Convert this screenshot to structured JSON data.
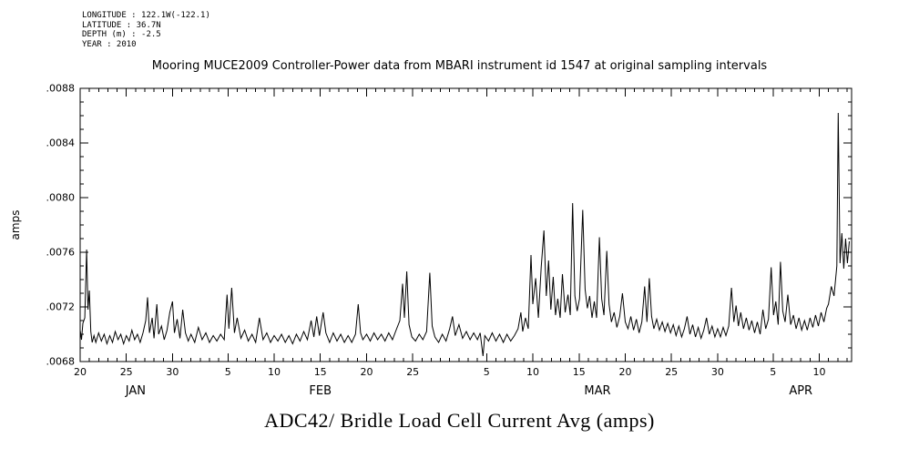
{
  "header": {
    "metadata_lines": [
      "LONGITUDE : 122.1W(-122.1)",
      "LATITUDE : 36.7N",
      "DEPTH (m) : -2.5",
      "YEAR : 2010"
    ],
    "title": "Mooring MUCE2009 Controller-Power data from MBARI instrument id 1547 at original sampling intervals"
  },
  "footer": {
    "title": "ADC42/ Bridle Load Cell Current Avg (amps)"
  },
  "colors": {
    "foreground": "#000000",
    "background": "#ffffff"
  },
  "chart_data": {
    "type": "line",
    "title": "Mooring MUCE2009 Controller-Power data from MBARI instrument id 1547 at original sampling intervals",
    "ylabel": "amps",
    "grid": false,
    "legend": "none",
    "x_axis": {
      "unit": "days since Jan 20, 2010",
      "lim": [
        0,
        83.5
      ],
      "minor_step": 1,
      "major_ticks": [
        {
          "day": 0,
          "label": "20"
        },
        {
          "day": 5,
          "label": "25"
        },
        {
          "day": 10,
          "label": "30"
        },
        {
          "day": 16,
          "label": "5"
        },
        {
          "day": 21,
          "label": "10"
        },
        {
          "day": 26,
          "label": "15"
        },
        {
          "day": 31,
          "label": "20"
        },
        {
          "day": 36,
          "label": "25"
        },
        {
          "day": 44,
          "label": "5"
        },
        {
          "day": 49,
          "label": "10"
        },
        {
          "day": 54,
          "label": "15"
        },
        {
          "day": 59,
          "label": "20"
        },
        {
          "day": 64,
          "label": "25"
        },
        {
          "day": 69,
          "label": "30"
        },
        {
          "day": 75,
          "label": "5"
        },
        {
          "day": 80,
          "label": "10"
        }
      ],
      "month_labels": [
        {
          "day": 6,
          "label": "JAN"
        },
        {
          "day": 26,
          "label": "FEB"
        },
        {
          "day": 56,
          "label": "MAR"
        },
        {
          "day": 78,
          "label": "APR"
        }
      ]
    },
    "y_axis": {
      "lim": [
        0.0068,
        0.0088
      ],
      "minor_step": 0.0001,
      "major_ticks": [
        {
          "value": 0.0068,
          "label": ".0068"
        },
        {
          "value": 0.0072,
          "label": ".0072"
        },
        {
          "value": 0.0076,
          "label": ".0076"
        },
        {
          "value": 0.008,
          "label": ".0080"
        },
        {
          "value": 0.0084,
          "label": ".0084"
        },
        {
          "value": 0.0088,
          "label": ".0088"
        }
      ]
    },
    "series": [
      {
        "name": "ADC42/ Bridle Load Cell Current Avg (amps)",
        "color": "#000000",
        "points": [
          [
            0.0,
            0.00703
          ],
          [
            0.15,
            0.00696
          ],
          [
            0.3,
            0.00708
          ],
          [
            0.5,
            0.00712
          ],
          [
            0.7,
            0.00762
          ],
          [
            0.85,
            0.00718
          ],
          [
            1.0,
            0.00732
          ],
          [
            1.15,
            0.00702
          ],
          [
            1.3,
            0.00694
          ],
          [
            1.5,
            0.00699
          ],
          [
            1.7,
            0.00694
          ],
          [
            2.0,
            0.00701
          ],
          [
            2.3,
            0.00695
          ],
          [
            2.6,
            0.007
          ],
          [
            2.9,
            0.00693
          ],
          [
            3.2,
            0.00699
          ],
          [
            3.5,
            0.00694
          ],
          [
            3.8,
            0.00702
          ],
          [
            4.1,
            0.00696
          ],
          [
            4.4,
            0.007
          ],
          [
            4.7,
            0.00693
          ],
          [
            5.0,
            0.00699
          ],
          [
            5.3,
            0.00695
          ],
          [
            5.6,
            0.00703
          ],
          [
            5.9,
            0.00696
          ],
          [
            6.2,
            0.007
          ],
          [
            6.5,
            0.00694
          ],
          [
            6.8,
            0.00701
          ],
          [
            7.1,
            0.0071
          ],
          [
            7.3,
            0.00727
          ],
          [
            7.5,
            0.00701
          ],
          [
            7.8,
            0.00712
          ],
          [
            8.0,
            0.00697
          ],
          [
            8.3,
            0.00722
          ],
          [
            8.5,
            0.007
          ],
          [
            8.8,
            0.00706
          ],
          [
            9.1,
            0.00696
          ],
          [
            9.4,
            0.00703
          ],
          [
            9.7,
            0.00716
          ],
          [
            10.0,
            0.00724
          ],
          [
            10.2,
            0.00701
          ],
          [
            10.5,
            0.00711
          ],
          [
            10.8,
            0.00697
          ],
          [
            11.1,
            0.00718
          ],
          [
            11.4,
            0.00701
          ],
          [
            11.7,
            0.00695
          ],
          [
            12.0,
            0.007
          ],
          [
            12.4,
            0.00694
          ],
          [
            12.8,
            0.00705
          ],
          [
            13.2,
            0.00696
          ],
          [
            13.6,
            0.00701
          ],
          [
            14.0,
            0.00694
          ],
          [
            14.4,
            0.00699
          ],
          [
            14.8,
            0.00695
          ],
          [
            15.2,
            0.007
          ],
          [
            15.6,
            0.00696
          ],
          [
            15.9,
            0.00729
          ],
          [
            16.1,
            0.00704
          ],
          [
            16.4,
            0.00734
          ],
          [
            16.7,
            0.00701
          ],
          [
            17.0,
            0.00712
          ],
          [
            17.4,
            0.00697
          ],
          [
            17.8,
            0.00703
          ],
          [
            18.2,
            0.00695
          ],
          [
            18.6,
            0.007
          ],
          [
            19.0,
            0.00694
          ],
          [
            19.4,
            0.00712
          ],
          [
            19.8,
            0.00696
          ],
          [
            20.2,
            0.00701
          ],
          [
            20.6,
            0.00694
          ],
          [
            21.0,
            0.00699
          ],
          [
            21.4,
            0.00695
          ],
          [
            21.8,
            0.007
          ],
          [
            22.2,
            0.00694
          ],
          [
            22.6,
            0.00699
          ],
          [
            23.0,
            0.00693
          ],
          [
            23.4,
            0.007
          ],
          [
            23.8,
            0.00695
          ],
          [
            24.2,
            0.00702
          ],
          [
            24.6,
            0.00696
          ],
          [
            25.0,
            0.0071
          ],
          [
            25.3,
            0.00698
          ],
          [
            25.6,
            0.00713
          ],
          [
            25.9,
            0.00699
          ],
          [
            26.3,
            0.00716
          ],
          [
            26.6,
            0.00701
          ],
          [
            27.0,
            0.00694
          ],
          [
            27.4,
            0.00701
          ],
          [
            27.8,
            0.00695
          ],
          [
            28.2,
            0.007
          ],
          [
            28.6,
            0.00694
          ],
          [
            29.0,
            0.00699
          ],
          [
            29.4,
            0.00694
          ],
          [
            29.8,
            0.007
          ],
          [
            30.1,
            0.00722
          ],
          [
            30.35,
            0.00701
          ],
          [
            30.6,
            0.00696
          ],
          [
            31.0,
            0.007
          ],
          [
            31.4,
            0.00695
          ],
          [
            31.8,
            0.00701
          ],
          [
            32.2,
            0.00696
          ],
          [
            32.6,
            0.007
          ],
          [
            33.0,
            0.00695
          ],
          [
            33.4,
            0.00701
          ],
          [
            33.8,
            0.00696
          ],
          [
            34.2,
            0.00703
          ],
          [
            34.6,
            0.0071
          ],
          [
            34.9,
            0.00737
          ],
          [
            35.1,
            0.00712
          ],
          [
            35.35,
            0.00746
          ],
          [
            35.6,
            0.00707
          ],
          [
            35.9,
            0.00698
          ],
          [
            36.3,
            0.00695
          ],
          [
            36.7,
            0.007
          ],
          [
            37.1,
            0.00696
          ],
          [
            37.5,
            0.00702
          ],
          [
            37.85,
            0.00745
          ],
          [
            38.1,
            0.00706
          ],
          [
            38.4,
            0.00698
          ],
          [
            38.8,
            0.00694
          ],
          [
            39.2,
            0.007
          ],
          [
            39.6,
            0.00695
          ],
          [
            40.0,
            0.00704
          ],
          [
            40.3,
            0.00713
          ],
          [
            40.6,
            0.00699
          ],
          [
            41.0,
            0.00707
          ],
          [
            41.4,
            0.00697
          ],
          [
            41.8,
            0.00702
          ],
          [
            42.2,
            0.00696
          ],
          [
            42.6,
            0.00701
          ],
          [
            43.0,
            0.00696
          ],
          [
            43.3,
            0.00701
          ],
          [
            43.6,
            0.00684
          ],
          [
            43.8,
            0.00699
          ],
          [
            44.2,
            0.00695
          ],
          [
            44.6,
            0.00701
          ],
          [
            45.0,
            0.00695
          ],
          [
            45.4,
            0.007
          ],
          [
            45.8,
            0.00694
          ],
          [
            46.2,
            0.007
          ],
          [
            46.6,
            0.00695
          ],
          [
            47.0,
            0.00699
          ],
          [
            47.4,
            0.00704
          ],
          [
            47.7,
            0.00716
          ],
          [
            47.9,
            0.00702
          ],
          [
            48.2,
            0.00712
          ],
          [
            48.5,
            0.00704
          ],
          [
            48.8,
            0.00758
          ],
          [
            49.0,
            0.00722
          ],
          [
            49.3,
            0.00741
          ],
          [
            49.6,
            0.00712
          ],
          [
            49.9,
            0.00749
          ],
          [
            50.2,
            0.00776
          ],
          [
            50.45,
            0.00728
          ],
          [
            50.7,
            0.00754
          ],
          [
            50.95,
            0.00718
          ],
          [
            51.2,
            0.00742
          ],
          [
            51.45,
            0.00714
          ],
          [
            51.7,
            0.00726
          ],
          [
            51.95,
            0.00712
          ],
          [
            52.2,
            0.00744
          ],
          [
            52.5,
            0.00716
          ],
          [
            52.8,
            0.00729
          ],
          [
            53.05,
            0.00714
          ],
          [
            53.3,
            0.00796
          ],
          [
            53.55,
            0.00728
          ],
          [
            53.8,
            0.00717
          ],
          [
            54.05,
            0.00726
          ],
          [
            54.4,
            0.00791
          ],
          [
            54.65,
            0.00733
          ],
          [
            54.9,
            0.00719
          ],
          [
            55.15,
            0.00728
          ],
          [
            55.4,
            0.00712
          ],
          [
            55.65,
            0.00724
          ],
          [
            55.9,
            0.00712
          ],
          [
            56.2,
            0.00771
          ],
          [
            56.45,
            0.00726
          ],
          [
            56.7,
            0.00714
          ],
          [
            57.0,
            0.00761
          ],
          [
            57.25,
            0.00722
          ],
          [
            57.5,
            0.00709
          ],
          [
            57.8,
            0.00716
          ],
          [
            58.1,
            0.00705
          ],
          [
            58.4,
            0.00713
          ],
          [
            58.7,
            0.0073
          ],
          [
            59.0,
            0.00709
          ],
          [
            59.3,
            0.00704
          ],
          [
            59.6,
            0.00713
          ],
          [
            59.9,
            0.00703
          ],
          [
            60.2,
            0.00711
          ],
          [
            60.5,
            0.00701
          ],
          [
            60.8,
            0.00709
          ],
          [
            61.1,
            0.00735
          ],
          [
            61.35,
            0.00709
          ],
          [
            61.6,
            0.00741
          ],
          [
            61.85,
            0.00713
          ],
          [
            62.1,
            0.00704
          ],
          [
            62.4,
            0.00711
          ],
          [
            62.7,
            0.00703
          ],
          [
            63.0,
            0.00709
          ],
          [
            63.3,
            0.00702
          ],
          [
            63.6,
            0.00708
          ],
          [
            63.9,
            0.00701
          ],
          [
            64.2,
            0.00707
          ],
          [
            64.5,
            0.00699
          ],
          [
            64.8,
            0.00706
          ],
          [
            65.1,
            0.00698
          ],
          [
            65.4,
            0.00704
          ],
          [
            65.7,
            0.00713
          ],
          [
            66.0,
            0.007
          ],
          [
            66.3,
            0.00707
          ],
          [
            66.6,
            0.00698
          ],
          [
            66.9,
            0.00705
          ],
          [
            67.2,
            0.00697
          ],
          [
            67.5,
            0.00703
          ],
          [
            67.8,
            0.00712
          ],
          [
            68.1,
            0.007
          ],
          [
            68.4,
            0.00706
          ],
          [
            68.7,
            0.00698
          ],
          [
            69.0,
            0.00704
          ],
          [
            69.3,
            0.00698
          ],
          [
            69.6,
            0.00705
          ],
          [
            69.9,
            0.00699
          ],
          [
            70.2,
            0.00706
          ],
          [
            70.5,
            0.00734
          ],
          [
            70.75,
            0.00709
          ],
          [
            71.0,
            0.00721
          ],
          [
            71.25,
            0.00706
          ],
          [
            71.5,
            0.00716
          ],
          [
            71.8,
            0.00704
          ],
          [
            72.1,
            0.00712
          ],
          [
            72.4,
            0.00703
          ],
          [
            72.7,
            0.0071
          ],
          [
            73.0,
            0.00701
          ],
          [
            73.3,
            0.00709
          ],
          [
            73.6,
            0.007
          ],
          [
            73.9,
            0.00718
          ],
          [
            74.2,
            0.00704
          ],
          [
            74.5,
            0.00711
          ],
          [
            74.8,
            0.00749
          ],
          [
            75.05,
            0.00714
          ],
          [
            75.3,
            0.00724
          ],
          [
            75.55,
            0.00707
          ],
          [
            75.8,
            0.00753
          ],
          [
            76.05,
            0.00717
          ],
          [
            76.3,
            0.00709
          ],
          [
            76.6,
            0.00729
          ],
          [
            76.9,
            0.00707
          ],
          [
            77.2,
            0.00714
          ],
          [
            77.5,
            0.00704
          ],
          [
            77.8,
            0.00712
          ],
          [
            78.1,
            0.00703
          ],
          [
            78.4,
            0.0071
          ],
          [
            78.7,
            0.00703
          ],
          [
            79.0,
            0.00712
          ],
          [
            79.3,
            0.00705
          ],
          [
            79.6,
            0.00714
          ],
          [
            79.9,
            0.00706
          ],
          [
            80.2,
            0.00716
          ],
          [
            80.5,
            0.00709
          ],
          [
            80.8,
            0.00719
          ],
          [
            81.0,
            0.00722
          ],
          [
            81.3,
            0.00735
          ],
          [
            81.6,
            0.00728
          ],
          [
            81.9,
            0.0075
          ],
          [
            82.05,
            0.00862
          ],
          [
            82.25,
            0.00752
          ],
          [
            82.45,
            0.00774
          ],
          [
            82.65,
            0.00748
          ],
          [
            82.85,
            0.0077
          ],
          [
            83.05,
            0.00752
          ],
          [
            83.25,
            0.00768
          ]
        ]
      }
    ]
  }
}
